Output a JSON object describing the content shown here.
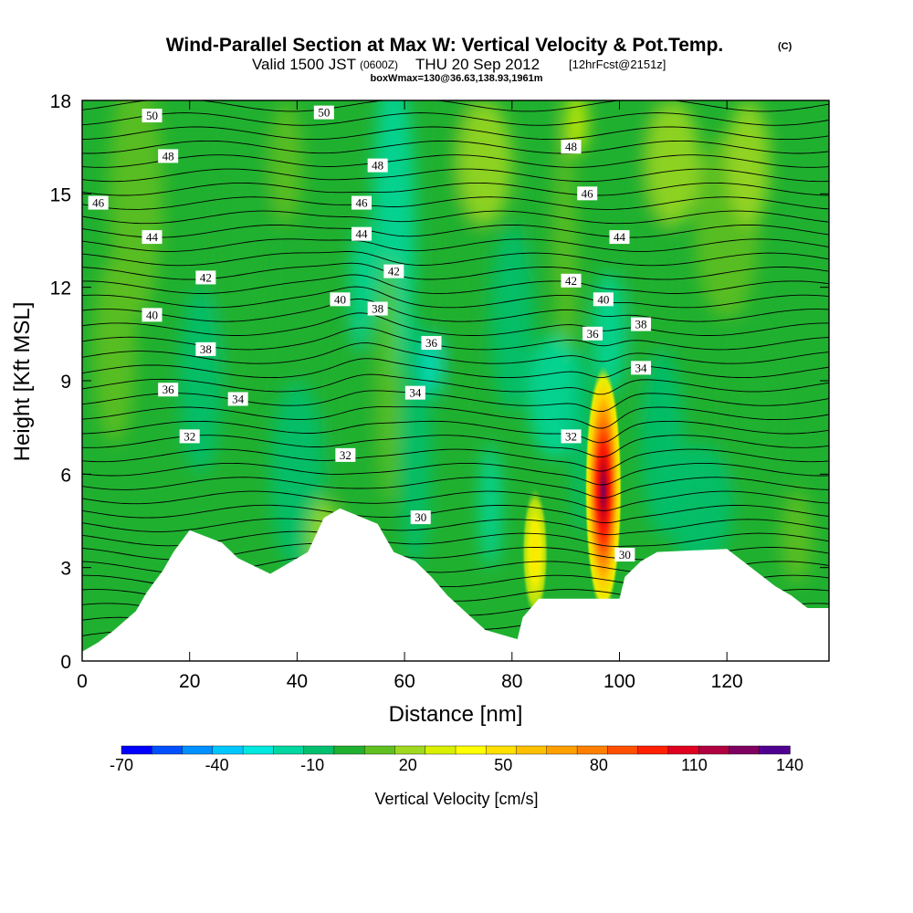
{
  "chart_data": {
    "type": "contour cross-section",
    "title": "Wind-Parallel Section at Max W: Vertical Velocity & Pot.Temp.",
    "copyright_mark": "(C)",
    "subtitle_parts": [
      "Valid 1500 JST",
      "(0600Z)",
      "THU 20 Sep 2012",
      "[12hrFcst@2151z]"
    ],
    "info_line": "boxWmax=130@36.63,138.93,1961m",
    "xlabel": "Distance [nm]",
    "ylabel": "Height [Kft MSL]",
    "xlim": [
      0,
      139
    ],
    "ylim": [
      0,
      18
    ],
    "x_ticks": [
      0,
      20,
      40,
      60,
      80,
      100,
      120
    ],
    "y_ticks": [
      0,
      3,
      6,
      9,
      12,
      15,
      18
    ],
    "colorbar": {
      "label": "Vertical Velocity [cm/s]",
      "tick_labels": [
        "-70",
        "-40",
        "-10",
        "20",
        "50",
        "80",
        "110",
        "140"
      ],
      "min": -70,
      "max": 140,
      "step": 10,
      "colors": [
        "#0000ff",
        "#0050ff",
        "#0090ff",
        "#00c8ff",
        "#00e8e0",
        "#00d8a0",
        "#00c070",
        "#20b030",
        "#60c020",
        "#a0d820",
        "#d8f000",
        "#ffff00",
        "#ffe000",
        "#ffc000",
        "#ffa000",
        "#ff8000",
        "#ff5000",
        "#ff2000",
        "#e00020",
        "#b00040",
        "#800060",
        "#500090"
      ]
    },
    "terrain_kft": [
      [
        0,
        0.3
      ],
      [
        3,
        0.6
      ],
      [
        6,
        1.0
      ],
      [
        10,
        1.6
      ],
      [
        12,
        2.2
      ],
      [
        15,
        2.9
      ],
      [
        17,
        3.5
      ],
      [
        20,
        4.2
      ],
      [
        26,
        3.8
      ],
      [
        29,
        3.3
      ],
      [
        35,
        2.8
      ],
      [
        42,
        3.5
      ],
      [
        45,
        4.6
      ],
      [
        48,
        4.9
      ],
      [
        55,
        4.4
      ],
      [
        58,
        3.5
      ],
      [
        62,
        3.2
      ],
      [
        65,
        2.7
      ],
      [
        68,
        2.1
      ],
      [
        75,
        1.0
      ],
      [
        81,
        0.7
      ],
      [
        82,
        1.4
      ],
      [
        85,
        2.0
      ],
      [
        100,
        2.0
      ],
      [
        101,
        2.7
      ],
      [
        104,
        3.2
      ],
      [
        107,
        3.5
      ],
      [
        120,
        3.6
      ],
      [
        123,
        3.2
      ],
      [
        126,
        2.8
      ],
      [
        129,
        2.4
      ],
      [
        132,
        2.1
      ],
      [
        135,
        1.7
      ],
      [
        139,
        1.7
      ]
    ],
    "updraft_max": {
      "x": 97,
      "y": 5.5,
      "value": 130
    },
    "theta_contour_labels": [
      {
        "text": "50",
        "x": 13,
        "y": 17.5
      },
      {
        "text": "50",
        "x": 45,
        "y": 17.6
      },
      {
        "text": "48",
        "x": 16,
        "y": 16.2
      },
      {
        "text": "48",
        "x": 55,
        "y": 15.9
      },
      {
        "text": "48",
        "x": 91,
        "y": 16.5
      },
      {
        "text": "46",
        "x": 3,
        "y": 14.7
      },
      {
        "text": "46",
        "x": 52,
        "y": 14.7
      },
      {
        "text": "46",
        "x": 94,
        "y": 15.0
      },
      {
        "text": "44",
        "x": 13,
        "y": 13.6
      },
      {
        "text": "44",
        "x": 52,
        "y": 13.7
      },
      {
        "text": "44",
        "x": 100,
        "y": 13.6
      },
      {
        "text": "42",
        "x": 23,
        "y": 12.3
      },
      {
        "text": "42",
        "x": 58,
        "y": 12.5
      },
      {
        "text": "42",
        "x": 91,
        "y": 12.2
      },
      {
        "text": "40",
        "x": 13,
        "y": 11.1
      },
      {
        "text": "40",
        "x": 48,
        "y": 11.6
      },
      {
        "text": "40",
        "x": 97,
        "y": 11.6
      },
      {
        "text": "38",
        "x": 23,
        "y": 10.0
      },
      {
        "text": "38",
        "x": 55,
        "y": 11.3
      },
      {
        "text": "38",
        "x": 104,
        "y": 10.8
      },
      {
        "text": "36",
        "x": 16,
        "y": 8.7
      },
      {
        "text": "36",
        "x": 65,
        "y": 10.2
      },
      {
        "text": "36",
        "x": 95,
        "y": 10.5
      },
      {
        "text": "34",
        "x": 29,
        "y": 8.4
      },
      {
        "text": "34",
        "x": 62,
        "y": 8.6
      },
      {
        "text": "34",
        "x": 104,
        "y": 9.4
      },
      {
        "text": "32",
        "x": 20,
        "y": 7.2
      },
      {
        "text": "32",
        "x": 49,
        "y": 6.6
      },
      {
        "text": "32",
        "x": 91,
        "y": 7.2
      },
      {
        "text": "30",
        "x": 63,
        "y": 4.6
      },
      {
        "text": "30",
        "x": 101,
        "y": 3.4
      }
    ]
  }
}
